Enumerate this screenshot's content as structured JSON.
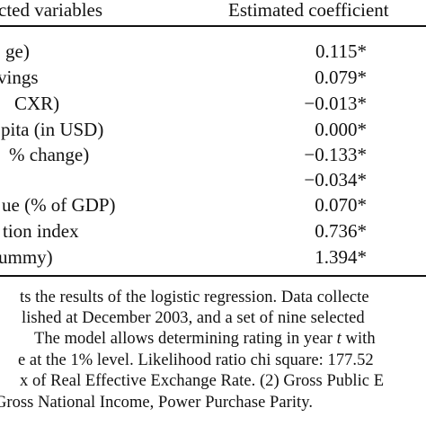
{
  "table": {
    "header": {
      "variables": "cted variables",
      "coefficient": "Estimated coefficient"
    },
    "rows": [
      {
        "variable": "ge)",
        "coefficient": "0.115*"
      },
      {
        "variable": "vings",
        "coefficient": "0.079*"
      },
      {
        "variable": "CXR)",
        "coefficient": "−0.013*"
      },
      {
        "variable": "pita (in USD)",
        "coefficient": "0.000*"
      },
      {
        "variable": "% change)",
        "coefficient": "−0.133*"
      },
      {
        "variable": "",
        "coefficient": "−0.034*"
      },
      {
        "variable": "ue (% of GDP)",
        "coefficient": "0.070*"
      },
      {
        "variable": "tion index",
        "coefficient": "0.736*"
      },
      {
        "variable": "ummy)",
        "coefficient": "1.394*"
      }
    ]
  },
  "notes": [
    {
      "prefix": "ts the results of the logistic regression. Data collecte",
      "italic": "",
      "suffix": ""
    },
    {
      "prefix": "lished at December 2003, and a set of nine selected",
      "italic": "",
      "suffix": ""
    },
    {
      "prefix": "The model allows determining rating in year ",
      "italic": "t",
      "suffix": " with"
    },
    {
      "prefix": "e at the 1% level. Likelihood ratio chi square: 177.52",
      "italic": "",
      "suffix": ""
    },
    {
      "prefix": "x of Real Effective Exchange Rate. (2) Gross Public E",
      "italic": "",
      "suffix": ""
    },
    {
      "prefix": "Gross National Income, Power Purchase Parity.",
      "italic": "",
      "suffix": ""
    }
  ]
}
